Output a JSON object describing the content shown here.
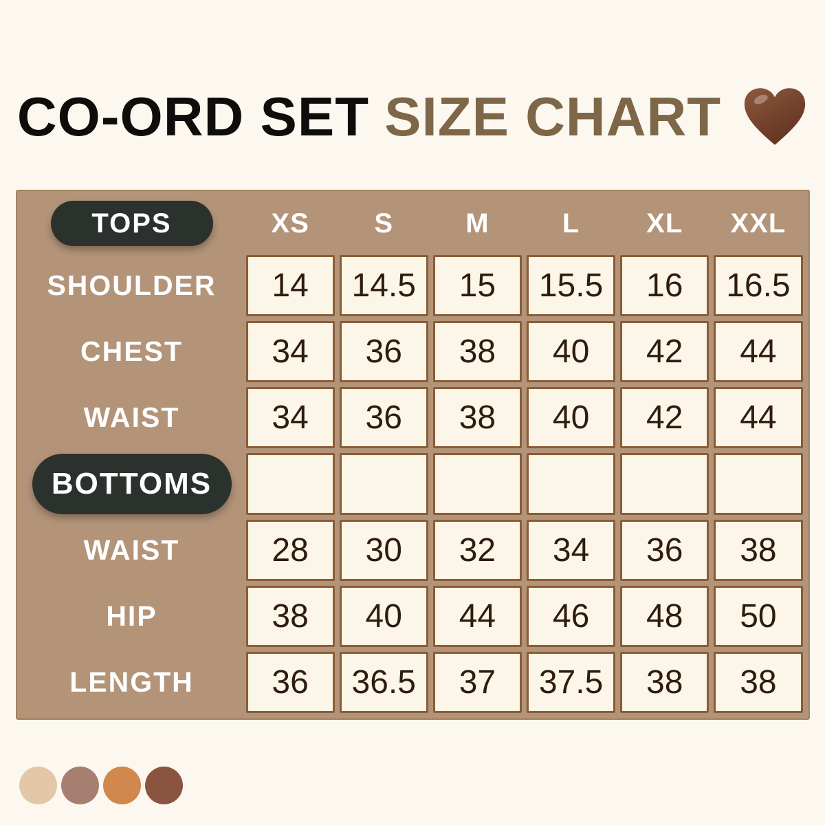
{
  "title": {
    "main": "CO-ORD SET",
    "accent": "SIZE CHART",
    "accent_color": "#7d6748",
    "heart_color": "#76432e"
  },
  "table": {
    "background_color": "#b39479",
    "cell_background": "#fbf6e7",
    "cell_border_color": "#8a5c36",
    "pill_color": "#2b312c",
    "size_headers": [
      "XS",
      "S",
      "M",
      "L",
      "XL",
      "XXL"
    ],
    "rows": [
      {
        "kind": "header",
        "pill": "TOPS",
        "cells": [
          "XS",
          "S",
          "M",
          "L",
          "XL",
          "XXL"
        ]
      },
      {
        "kind": "data",
        "label": "SHOULDER",
        "cells": [
          "14",
          "14.5",
          "15",
          "15.5",
          "16",
          "16.5"
        ]
      },
      {
        "kind": "data",
        "label": "CHEST",
        "cells": [
          "34",
          "36",
          "38",
          "40",
          "42",
          "44"
        ]
      },
      {
        "kind": "data",
        "label": "WAIST",
        "cells": [
          "34",
          "36",
          "38",
          "40",
          "42",
          "44"
        ]
      },
      {
        "kind": "section",
        "pill": "BOTTOMS",
        "cells": [
          "",
          "",
          "",
          "",
          "",
          ""
        ]
      },
      {
        "kind": "data",
        "label": "WAIST",
        "cells": [
          "28",
          "30",
          "32",
          "34",
          "36",
          "38"
        ]
      },
      {
        "kind": "data",
        "label": "HIP",
        "cells": [
          "38",
          "40",
          "44",
          "46",
          "48",
          "50"
        ]
      },
      {
        "kind": "data",
        "label": "LENGTH",
        "cells": [
          "36",
          "36.5",
          "37",
          "37.5",
          "38",
          "38"
        ]
      }
    ]
  },
  "palette": {
    "swatches": [
      "#e3c7a8",
      "#a67f71",
      "#d0884c",
      "#8a5440"
    ]
  }
}
